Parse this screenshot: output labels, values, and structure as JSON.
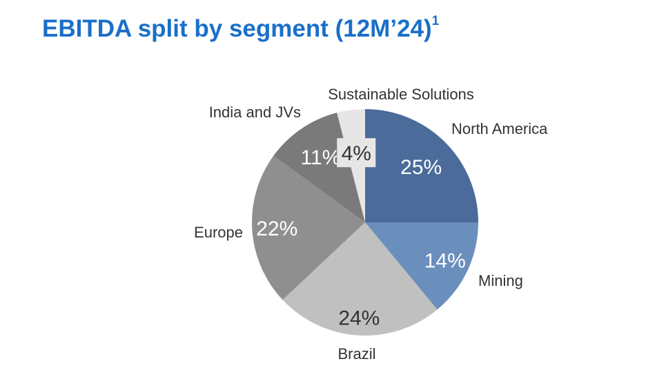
{
  "title": "EBITDA split by segment (12M’24)",
  "title_footnote": "1",
  "chart_data": {
    "type": "pie",
    "title": "EBITDA split by segment (12M’24)",
    "slices": [
      {
        "name": "North America",
        "value": 25,
        "label": "25%",
        "color": "#4b6b9b",
        "text_color": "#ffffff"
      },
      {
        "name": "Mining",
        "value": 14,
        "label": "14%",
        "color": "#6b8fbd",
        "text_color": "#ffffff"
      },
      {
        "name": "Brazil",
        "value": 24,
        "label": "24%",
        "color": "#c0c0c0",
        "text_color": "#333333"
      },
      {
        "name": "Europe",
        "value": 22,
        "label": "22%",
        "color": "#8f8f8f",
        "text_color": "#ffffff"
      },
      {
        "name": "India and JVs",
        "value": 11,
        "label": "11%",
        "color": "#7a7a7a",
        "text_color": "#ffffff"
      },
      {
        "name": "Sustainable Solutions",
        "value": 4,
        "label": "4%",
        "color": "#e6e6e6",
        "text_color": "#333333"
      }
    ],
    "start": "12 o'clock",
    "direction": "clockwise",
    "legend": "none"
  }
}
